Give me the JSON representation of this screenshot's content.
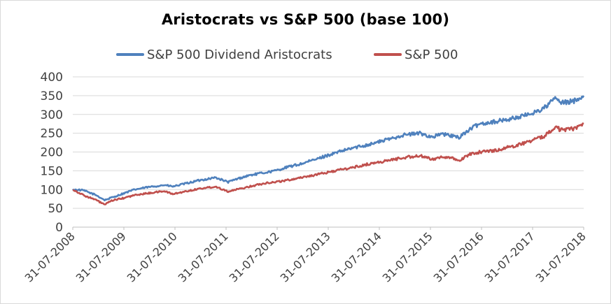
{
  "chart_data": {
    "type": "line",
    "title": "Aristocrats vs S&P 500 (base 100)",
    "xlabel": "",
    "ylabel": "",
    "ylim": [
      0,
      400
    ],
    "y_ticks": [
      "0",
      "50",
      "100",
      "150",
      "200",
      "250",
      "300",
      "350",
      "400"
    ],
    "x_ticks": [
      "31-07-2008",
      "31-07-2009",
      "31-07-2010",
      "31-07-2011",
      "31-07-2012",
      "31-07-2013",
      "31-07-2014",
      "31-07-2015",
      "31-07-2016",
      "31-07-2017",
      "31-07-2018"
    ],
    "grid": "horizontal",
    "legend_position": "top",
    "x": [
      "2008-07",
      "2008-10",
      "2009-01",
      "2009-03",
      "2009-05",
      "2009-07",
      "2009-10",
      "2010-01",
      "2010-05",
      "2010-07",
      "2010-10",
      "2011-01",
      "2011-05",
      "2011-08",
      "2011-10",
      "2012-01",
      "2012-05",
      "2012-07",
      "2012-10",
      "2013-01",
      "2013-05",
      "2013-07",
      "2013-10",
      "2014-01",
      "2014-05",
      "2014-07",
      "2014-10",
      "2015-01",
      "2015-05",
      "2015-08",
      "2015-10",
      "2016-01",
      "2016-02",
      "2016-05",
      "2016-07",
      "2016-10",
      "2017-01",
      "2017-05",
      "2017-07",
      "2017-10",
      "2018-01",
      "2018-02",
      "2018-05",
      "2018-07"
    ],
    "series": [
      {
        "name": "S&P 500 Dividend Aristocrats",
        "color": "#4f81bd",
        "values": [
          100,
          98,
          85,
          72,
          80,
          88,
          100,
          106,
          112,
          108,
          116,
          124,
          132,
          120,
          128,
          138,
          146,
          150,
          160,
          168,
          182,
          190,
          200,
          210,
          220,
          226,
          235,
          245,
          250,
          240,
          248,
          242,
          238,
          262,
          275,
          280,
          285,
          295,
          302,
          315,
          345,
          330,
          335,
          350
        ]
      },
      {
        "name": "S&P 500",
        "color": "#c0504d",
        "values": [
          100,
          85,
          72,
          60,
          72,
          76,
          85,
          90,
          96,
          88,
          95,
          102,
          108,
          95,
          100,
          108,
          118,
          120,
          125,
          132,
          140,
          145,
          152,
          158,
          168,
          172,
          178,
          185,
          190,
          180,
          188,
          182,
          176,
          195,
          200,
          203,
          210,
          222,
          230,
          240,
          270,
          258,
          262,
          275
        ]
      }
    ]
  }
}
